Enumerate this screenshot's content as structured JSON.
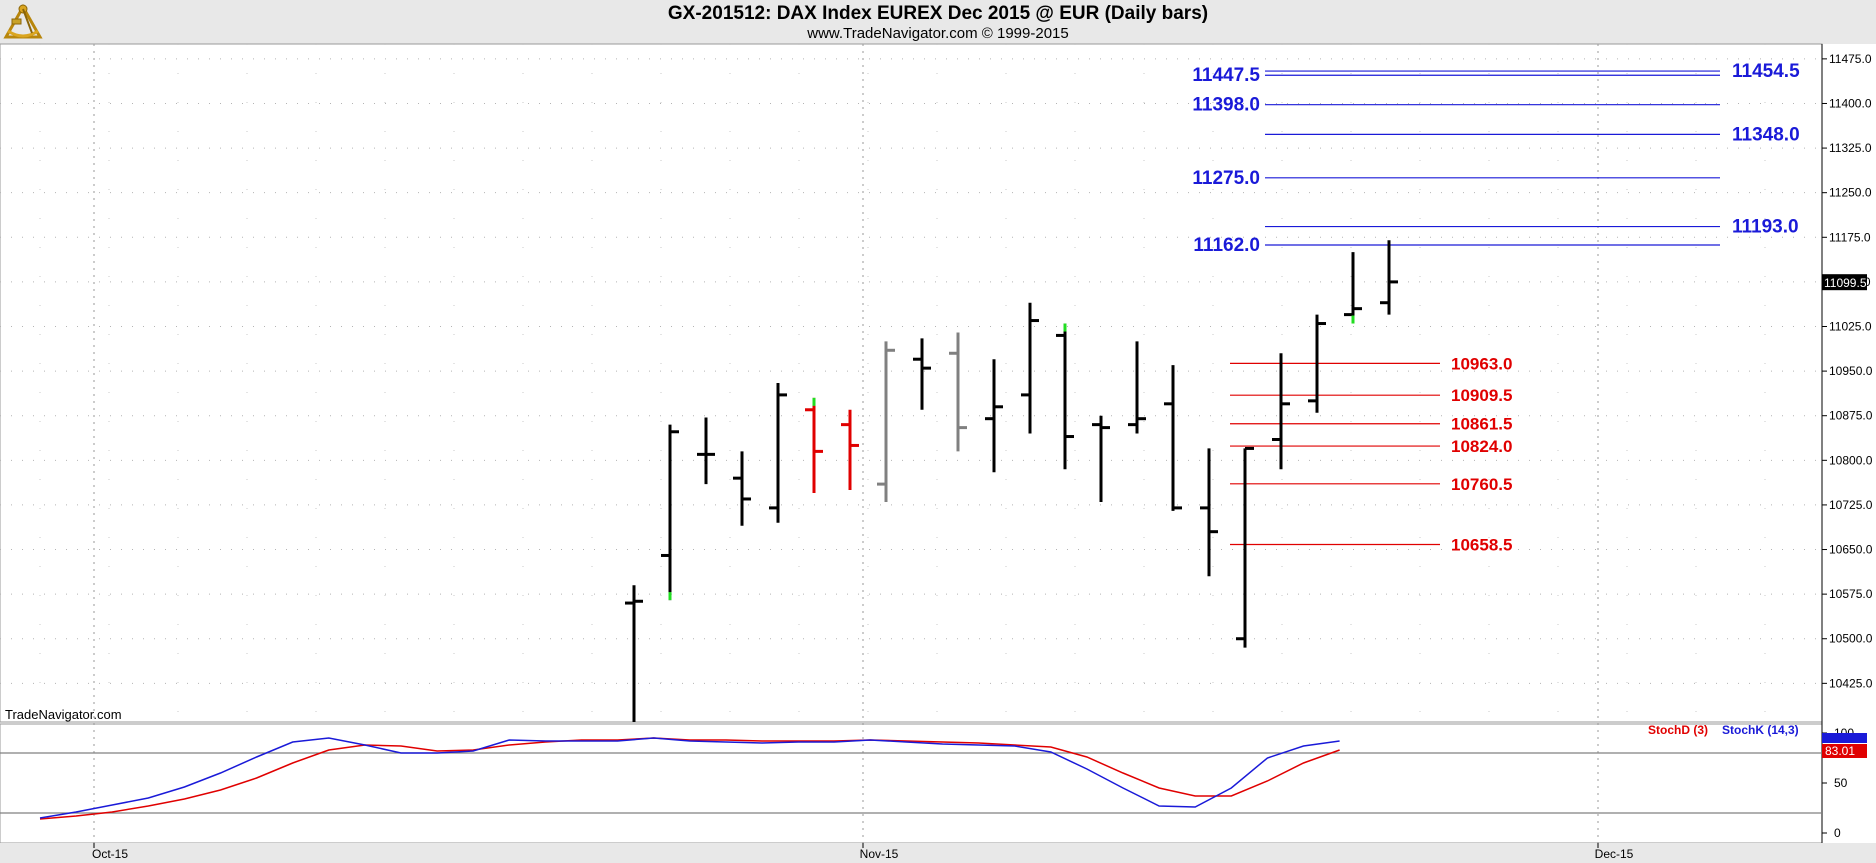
{
  "title": "GX-201512:  DAX Index EUREX Dec 2015 @ EUR  (Daily bars)",
  "subtitle": "www.TradeNavigator.com © 1999-2015",
  "watermark": "TradeNavigator.com",
  "colors": {
    "blue_levels": "#1a1ad8",
    "red_levels": "#e00000",
    "bar_black": "#000000",
    "bar_red": "#e00000",
    "bar_gray": "#808080",
    "tick_green": "#22dd22",
    "stoch_k": "#1a1ad8",
    "stoch_d": "#e00000"
  },
  "chart_data": [
    {
      "type": "bar",
      "subtype": "ohlc",
      "ylim": [
        10360,
        11500
      ],
      "yticks": [
        "10425.0",
        "10500.0",
        "10575.0",
        "10650.0",
        "10725.0",
        "10800.0",
        "10875.0",
        "10950.0",
        "11025.0",
        "11100.0",
        "11175.0",
        "11250.0",
        "11325.0",
        "11400.0",
        "11475.0"
      ],
      "last_price_label": "11099.5",
      "dates": [
        "Oct-15",
        "Nov-15",
        "Dec-15"
      ],
      "bars": [
        {
          "d": 0,
          "o": 10560,
          "h": 10590,
          "l": 10360,
          "c": 10563,
          "color": "black"
        },
        {
          "d": 1,
          "o": 10640,
          "h": 10860,
          "l": 10565,
          "c": 10848,
          "color": "black",
          "tick": "low"
        },
        {
          "d": 2,
          "o": 10810,
          "h": 10872,
          "l": 10760,
          "c": 10810,
          "color": "black"
        },
        {
          "d": 3,
          "o": 10770,
          "h": 10815,
          "l": 10690,
          "c": 10735,
          "color": "black"
        },
        {
          "d": 4,
          "o": 10720,
          "h": 10930,
          "l": 10695,
          "c": 10910,
          "color": "black"
        },
        {
          "d": 5,
          "o": 10885,
          "h": 10905,
          "l": 10745,
          "c": 10815,
          "color": "red",
          "tick": "high"
        },
        {
          "d": 6,
          "o": 10860,
          "h": 10885,
          "l": 10750,
          "c": 10825,
          "color": "red"
        },
        {
          "d": 7,
          "o": 10760,
          "h": 11000,
          "l": 10730,
          "c": 10985,
          "color": "gray"
        },
        {
          "d": 8,
          "o": 10970,
          "h": 11005,
          "l": 10885,
          "c": 10955,
          "color": "black"
        },
        {
          "d": 9,
          "o": 10980,
          "h": 11015,
          "l": 10815,
          "c": 10855,
          "color": "gray"
        },
        {
          "d": 10,
          "o": 10870,
          "h": 10970,
          "l": 10780,
          "c": 10890,
          "color": "black"
        },
        {
          "d": 11,
          "o": 10910,
          "h": 11065,
          "l": 10845,
          "c": 11035,
          "color": "black"
        },
        {
          "d": 12,
          "o": 11010,
          "h": 11030,
          "l": 10785,
          "c": 10840,
          "color": "black",
          "tick": "high"
        },
        {
          "d": 13,
          "o": 10860,
          "h": 10875,
          "l": 10730,
          "c": 10855,
          "color": "black"
        },
        {
          "d": 14,
          "o": 10860,
          "h": 11000,
          "l": 10845,
          "c": 10870,
          "color": "black"
        },
        {
          "d": 15,
          "o": 10895,
          "h": 10960,
          "l": 10715,
          "c": 10720,
          "color": "black"
        },
        {
          "d": 16,
          "o": 10720,
          "h": 10820,
          "l": 10605,
          "c": 10680,
          "color": "black"
        },
        {
          "d": 17,
          "o": 10500,
          "h": 10820,
          "l": 10485,
          "c": 10820,
          "color": "black"
        },
        {
          "d": 18,
          "o": 10835,
          "h": 10980,
          "l": 10785,
          "c": 10895,
          "color": "black"
        },
        {
          "d": 19,
          "o": 10900,
          "h": 11045,
          "l": 10880,
          "c": 11030,
          "color": "black"
        },
        {
          "d": 20,
          "o": 11045,
          "h": 11150,
          "l": 11030,
          "c": 11055,
          "color": "black",
          "tick": "low"
        },
        {
          "d": 21,
          "o": 11065,
          "h": 11170,
          "l": 11045,
          "c": 11100,
          "color": "black"
        }
      ],
      "levels_above": [
        {
          "value": 11454.5,
          "label": "11454.5",
          "side": "right"
        },
        {
          "value": 11447.5,
          "label": "11447.5",
          "side": "left"
        },
        {
          "value": 11398.0,
          "label": "11398.0",
          "side": "left"
        },
        {
          "value": 11348.0,
          "label": "11348.0",
          "side": "right"
        },
        {
          "value": 11275.0,
          "label": "11275.0",
          "side": "left"
        },
        {
          "value": 11193.0,
          "label": "11193.0",
          "side": "right"
        },
        {
          "value": 11162.0,
          "label": "11162.0",
          "side": "left"
        }
      ],
      "levels_below": [
        {
          "value": 10963.0,
          "label": "10963.0"
        },
        {
          "value": 10909.5,
          "label": "10909.5"
        },
        {
          "value": 10861.5,
          "label": "10861.5"
        },
        {
          "value": 10824.0,
          "label": "10824.0"
        },
        {
          "value": 10760.5,
          "label": "10760.5"
        },
        {
          "value": 10658.5,
          "label": "10658.5"
        }
      ]
    },
    {
      "type": "line",
      "ylim": [
        0,
        100
      ],
      "yticks": [
        "0",
        "50",
        "100"
      ],
      "reference_lines": [
        20,
        80
      ],
      "last_d_label": "83.01",
      "series": [
        {
          "name": "StochD (3)",
          "color": "#e00000",
          "x": [
            0,
            1,
            2,
            3,
            4,
            5,
            6,
            7,
            8,
            9,
            10,
            11,
            12,
            13,
            14,
            15,
            16,
            17,
            18,
            19,
            20,
            21,
            22,
            23,
            24,
            25,
            26,
            27,
            28,
            29,
            30,
            31,
            32,
            33,
            34,
            35,
            36
          ],
          "values": [
            14,
            17,
            21,
            27,
            34,
            43,
            55,
            70,
            83,
            88,
            87,
            82,
            83,
            88,
            91,
            93,
            93,
            95,
            93,
            93,
            92,
            92,
            92,
            93,
            92,
            91,
            90,
            88,
            86,
            76,
            60,
            45,
            37,
            37,
            52,
            70,
            83
          ]
        },
        {
          "name": "StochK (14,3)",
          "color": "#1a1ad8",
          "x": [
            0,
            1,
            2,
            3,
            4,
            5,
            6,
            7,
            8,
            9,
            10,
            11,
            12,
            13,
            14,
            15,
            16,
            17,
            18,
            19,
            20,
            21,
            22,
            23,
            24,
            25,
            26,
            27,
            28,
            29,
            30,
            31,
            32,
            33,
            34,
            35,
            36
          ],
          "values": [
            15,
            21,
            28,
            35,
            46,
            60,
            76,
            91,
            95,
            88,
            80,
            80,
            82,
            93,
            92,
            92,
            92,
            95,
            92,
            91,
            90,
            91,
            91,
            93,
            91,
            89,
            88,
            87,
            81,
            64,
            45,
            27,
            26,
            45,
            75,
            87,
            92
          ]
        }
      ]
    }
  ]
}
